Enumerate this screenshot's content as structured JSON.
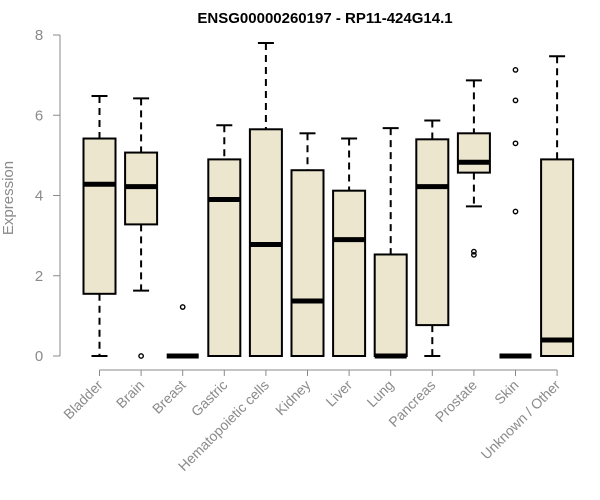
{
  "chart_data": {
    "type": "boxplot",
    "title": "ENSG00000260197 - RP11-424G14.1",
    "xlabel": "",
    "ylabel": "Expression",
    "ylim": [
      0,
      8
    ],
    "yticks": [
      0,
      2,
      4,
      6,
      8
    ],
    "grid": false,
    "box_fill": "#ede6cf",
    "categories": [
      "Bladder",
      "Brain",
      "Breast",
      "Gastric",
      "Hematopoietic cells",
      "Kidney",
      "Liver",
      "Lung",
      "Pancreas",
      "Prostate",
      "Skin",
      "Unknown / Other"
    ],
    "boxes": [
      {
        "label": "Bladder",
        "whisker_low": 0.0,
        "q1": 1.55,
        "median": 4.28,
        "q3": 5.42,
        "whisker_high": 6.48,
        "outliers": []
      },
      {
        "label": "Brain",
        "whisker_low": 1.63,
        "q1": 3.28,
        "median": 4.22,
        "q3": 5.07,
        "whisker_high": 6.42,
        "outliers": [
          0.0
        ]
      },
      {
        "label": "Breast",
        "whisker_low": 0.0,
        "q1": 0.0,
        "median": 0.0,
        "q3": 0.0,
        "whisker_high": 0.0,
        "outliers": [
          1.22
        ]
      },
      {
        "label": "Gastric",
        "whisker_low": 0.0,
        "q1": 0.0,
        "median": 3.9,
        "q3": 4.9,
        "whisker_high": 5.75,
        "outliers": []
      },
      {
        "label": "Hematopoietic cells",
        "whisker_low": 0.0,
        "q1": 0.0,
        "median": 2.78,
        "q3": 5.65,
        "whisker_high": 7.8,
        "outliers": []
      },
      {
        "label": "Kidney",
        "whisker_low": 0.0,
        "q1": 0.0,
        "median": 1.37,
        "q3": 4.63,
        "whisker_high": 5.55,
        "outliers": []
      },
      {
        "label": "Liver",
        "whisker_low": 0.0,
        "q1": 0.0,
        "median": 2.9,
        "q3": 4.12,
        "whisker_high": 5.42,
        "outliers": []
      },
      {
        "label": "Lung",
        "whisker_low": 0.0,
        "q1": 0.0,
        "median": 0.0,
        "q3": 2.53,
        "whisker_high": 5.68,
        "outliers": []
      },
      {
        "label": "Pancreas",
        "whisker_low": 0.0,
        "q1": 0.77,
        "median": 4.22,
        "q3": 5.4,
        "whisker_high": 5.87,
        "outliers": []
      },
      {
        "label": "Prostate",
        "whisker_low": 3.73,
        "q1": 4.57,
        "median": 4.83,
        "q3": 5.55,
        "whisker_high": 6.87,
        "outliers": [
          2.52,
          2.6
        ]
      },
      {
        "label": "Skin",
        "whisker_low": 0.0,
        "q1": 0.0,
        "median": 0.0,
        "q3": 0.0,
        "whisker_high": 0.0,
        "outliers": [
          3.6,
          5.3,
          6.37,
          7.13
        ]
      },
      {
        "label": "Unknown / Other",
        "whisker_low": 0.0,
        "q1": 0.0,
        "median": 0.4,
        "q3": 4.9,
        "whisker_high": 7.47,
        "outliers": []
      }
    ]
  }
}
